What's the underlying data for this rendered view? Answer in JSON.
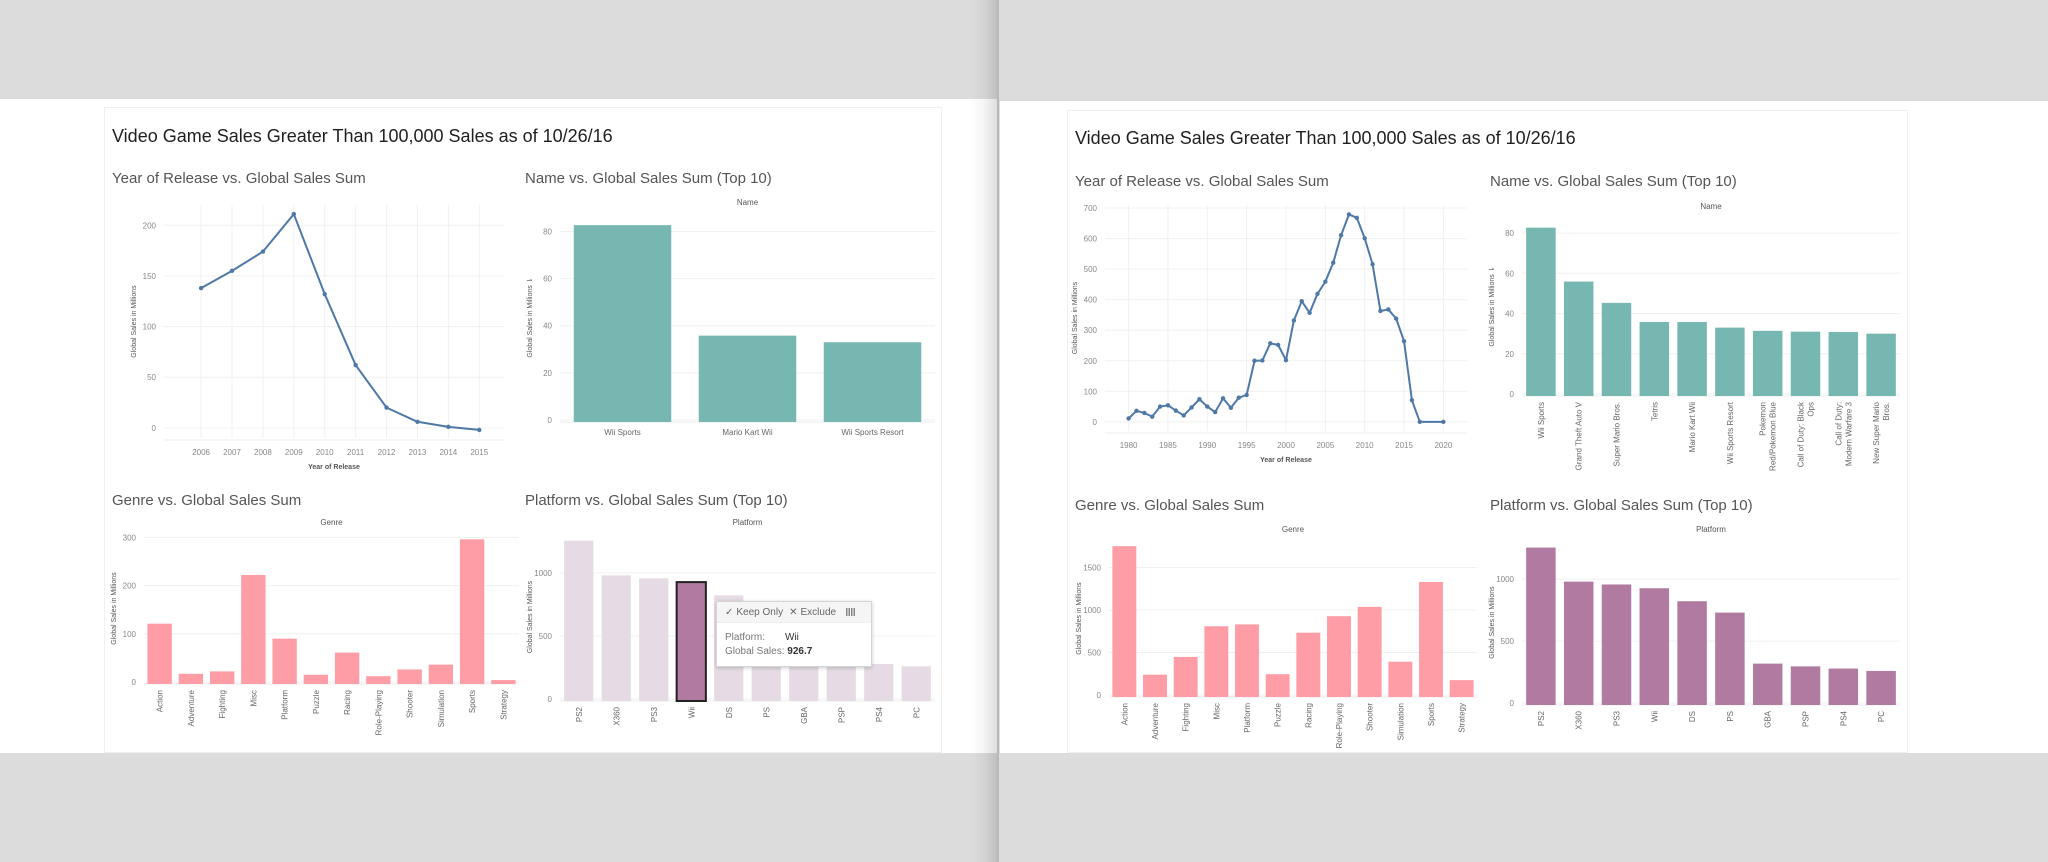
{
  "dashboard_title": "Video Game Sales Greater Than 100,000 Sales as of 10/26/16",
  "tooltip": {
    "keep_only_label": "Keep Only",
    "exclude_label": "Exclude",
    "check_icon": "✓",
    "x_icon": "✕",
    "view_data_icon": "grid-icon",
    "platform_label": "Platform:",
    "platform_value": "Wii",
    "sales_label": "Global Sales:",
    "sales_value": "926.7"
  },
  "colors": {
    "line": "#4e79a7",
    "teal": "#76b7b2",
    "pink": "#ff9da7",
    "purple": "#b07aa1",
    "purple_faded": "#e6dbe4",
    "grid": "#f0f0f0",
    "tick_text": "#888888",
    "axis_title": "#555555"
  },
  "chart_data": [
    {
      "id": "left-year",
      "type": "line",
      "title": "Year of Release vs. Global Sales Sum",
      "xlabel": "Year of Release",
      "ylabel": "Global Sales in Millions",
      "x": [
        2006,
        2007,
        2008,
        2009,
        2010,
        2011,
        2012,
        2013,
        2014,
        2015
      ],
      "values": [
        138,
        155,
        174,
        211,
        132,
        62,
        20,
        6,
        1,
        -2
      ],
      "xticks": [
        2006,
        2007,
        2008,
        2009,
        2010,
        2011,
        2012,
        2013,
        2014,
        2015
      ],
      "yticks": [
        0,
        50,
        100,
        150,
        200
      ],
      "ylim": [
        -10,
        220
      ],
      "grid": true
    },
    {
      "id": "left-name",
      "type": "bar",
      "title": "Name vs. Global Sales Sum (Top 10)",
      "header": "Name",
      "ylabel": "Global Sales in Millions",
      "sort_icon": true,
      "categories": [
        "Wii Sports",
        "Mario Kart Wii",
        "Wii Sports Resort"
      ],
      "values": [
        82.7,
        35.8,
        33.0
      ],
      "yticks": [
        0,
        20,
        40,
        60,
        80
      ],
      "ylim": [
        0,
        87
      ],
      "grid": true
    },
    {
      "id": "left-genre",
      "type": "bar",
      "title": "Genre vs. Global Sales Sum",
      "header": "Genre",
      "ylabel": "Global Sales in Millions",
      "categories": [
        "Action",
        "Adventure",
        "Fighting",
        "Misc",
        "Platform",
        "Puzzle",
        "Racing",
        "Role-Playing",
        "Shooter",
        "Simulation",
        "Sports",
        "Strategy"
      ],
      "values": [
        121,
        17,
        22,
        222,
        90,
        15,
        61,
        12,
        26,
        36,
        296,
        4
      ],
      "yticks": [
        0,
        100,
        200,
        300
      ],
      "ylim": [
        0,
        305
      ],
      "grid": true
    },
    {
      "id": "left-platform",
      "type": "bar",
      "title": "Platform vs. Global Sales Sum (Top 10)",
      "header": "Platform",
      "ylabel": "Global Sales in Millions",
      "categories": [
        "PS2",
        "X360",
        "PS3",
        "Wii",
        "DS",
        "PS",
        "GBA",
        "PSP",
        "PS4",
        "PC"
      ],
      "values": [
        1255,
        980,
        957,
        926.7,
        822,
        730,
        318,
        296,
        278,
        259
      ],
      "highlighted": "Wii",
      "yticks": [
        0,
        500,
        1000
      ],
      "ylim": [
        0,
        1300
      ],
      "grid": true
    },
    {
      "id": "right-year",
      "type": "line",
      "title": "Year of Release vs. Global Sales Sum",
      "xlabel": "Year of Release",
      "ylabel": "Global Sales in Millions",
      "x": [
        1980,
        1981,
        1982,
        1983,
        1984,
        1985,
        1986,
        1987,
        1988,
        1989,
        1990,
        1991,
        1992,
        1993,
        1994,
        1995,
        1996,
        1997,
        1998,
        1999,
        2000,
        2001,
        2002,
        2003,
        2004,
        2005,
        2006,
        2007,
        2008,
        2009,
        2010,
        2011,
        2012,
        2013,
        2014,
        2015,
        2016,
        2017,
        2020
      ],
      "values": [
        11,
        36,
        29,
        17,
        50,
        54,
        37,
        21,
        47,
        74,
        50,
        32,
        77,
        46,
        79,
        88,
        200,
        201,
        257,
        252,
        202,
        332,
        395,
        357,
        419,
        459,
        521,
        611,
        679,
        668,
        601,
        516,
        363,
        368,
        338,
        264,
        71,
        0,
        0
      ],
      "xticks": [
        1980,
        1985,
        1990,
        1995,
        2000,
        2005,
        2010,
        2015,
        2020
      ],
      "yticks": [
        0,
        100,
        200,
        300,
        400,
        500,
        600,
        700
      ],
      "ylim": [
        -30,
        710
      ],
      "xlim": [
        1977,
        2023
      ],
      "grid": true
    },
    {
      "id": "right-name",
      "type": "bar",
      "title": "Name vs. Global Sales Sum (Top 10)",
      "header": "Name",
      "ylabel": "Global Sales in Millions",
      "sort_icon": true,
      "categories": [
        "Wii Sports",
        "Grand Theft Auto V",
        "Super Mario Bros.",
        "Tetris",
        "Mario Kart Wii",
        "Wii Sports Resort",
        "Pokemon Red/Pokemon Blue",
        "Call of Duty: Black Ops",
        "Call of Duty: Modern Warfare 3",
        "New Super Mario Bros."
      ],
      "category_lines": [
        [
          "Wii Sports"
        ],
        [
          "Grand Theft Auto V"
        ],
        [
          "Super Mario Bros."
        ],
        [
          "Tetris"
        ],
        [
          "Mario Kart Wii"
        ],
        [
          "Wii Sports Resort"
        ],
        [
          "Pokemon",
          "Red/Pokemon Blue"
        ],
        [
          "Call of Duty: Black",
          "Ops"
        ],
        [
          "Call of Duty:",
          "Modern Warfare 3"
        ],
        [
          "New Super Mario",
          "Bros."
        ]
      ],
      "values": [
        82.7,
        55.9,
        45.3,
        35.8,
        35.8,
        33.0,
        31.4,
        31.0,
        30.8,
        30.0
      ],
      "yticks": [
        0,
        20,
        40,
        60,
        80
      ],
      "ylim": [
        0,
        87
      ],
      "grid": true
    },
    {
      "id": "right-genre",
      "type": "bar",
      "title": "Genre vs. Global Sales Sum",
      "header": "Genre",
      "ylabel": "Global Sales in Millions",
      "categories": [
        "Action",
        "Adventure",
        "Fighting",
        "Misc",
        "Platform",
        "Puzzle",
        "Racing",
        "Role-Playing",
        "Shooter",
        "Simulation",
        "Sports",
        "Strategy"
      ],
      "values": [
        1751,
        239,
        448,
        809,
        831,
        245,
        733,
        927,
        1037,
        392,
        1330,
        175
      ],
      "yticks": [
        0,
        500,
        1000,
        1500
      ],
      "ylim": [
        0,
        1800
      ],
      "grid": true
    },
    {
      "id": "right-platform",
      "type": "bar",
      "title": "Platform vs. Global Sales Sum (Top 10)",
      "header": "Platform",
      "ylabel": "Global Sales in Millions",
      "categories": [
        "PS2",
        "X360",
        "PS3",
        "Wii",
        "DS",
        "PS",
        "GBA",
        "PSP",
        "PS4",
        "PC"
      ],
      "values": [
        1255,
        980,
        957,
        926.7,
        822,
        730,
        318,
        296,
        278,
        259
      ],
      "yticks": [
        0,
        500,
        1000
      ],
      "ylim": [
        0,
        1300
      ],
      "grid": true
    }
  ]
}
